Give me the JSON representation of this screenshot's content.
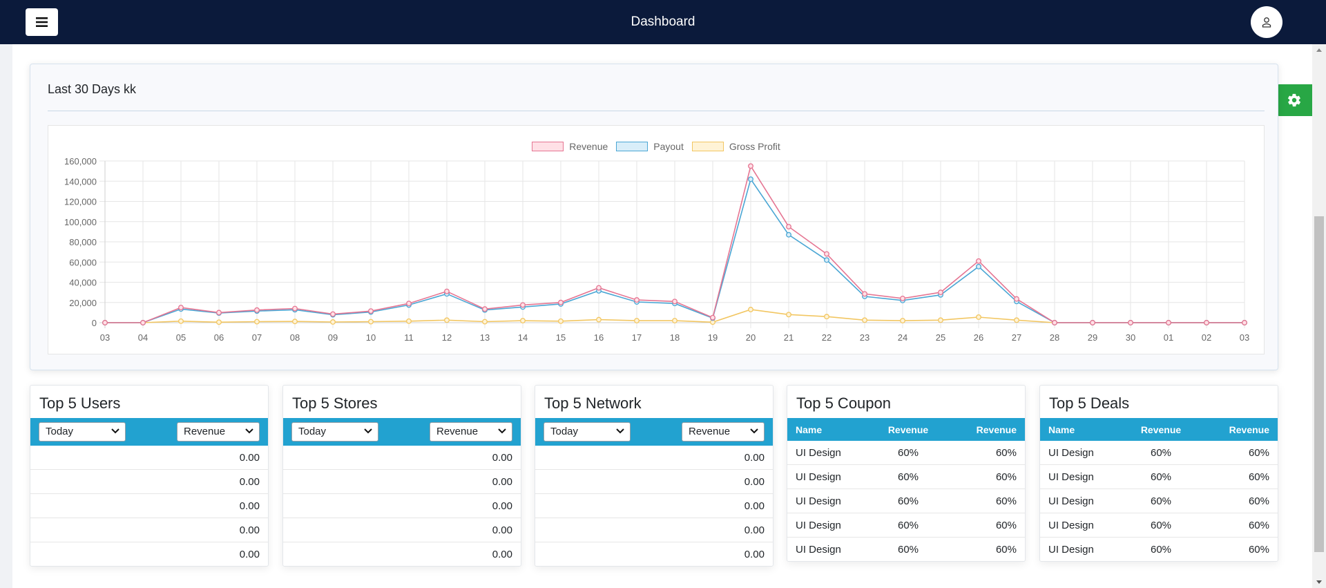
{
  "header": {
    "title": "Dashboard",
    "menu_icon": "hamburger-icon",
    "user_icon": "user-icon"
  },
  "settings_tab": {
    "icon": "gear-icon",
    "color": "#28a745"
  },
  "chart_card": {
    "title": "Last 30 Days kk"
  },
  "chart_data": {
    "type": "line",
    "categories": [
      "03",
      "04",
      "05",
      "06",
      "07",
      "08",
      "09",
      "10",
      "11",
      "12",
      "13",
      "14",
      "15",
      "16",
      "17",
      "18",
      "19",
      "20",
      "21",
      "22",
      "23",
      "24",
      "25",
      "26",
      "27",
      "28",
      "29",
      "30",
      "01",
      "02",
      "03"
    ],
    "y_ticks": [
      "0",
      "20,000",
      "40,000",
      "60,000",
      "80,000",
      "100,000",
      "120,000",
      "140,000",
      "160,000"
    ],
    "ylim": [
      0,
      160000
    ],
    "legend_position": "top-center",
    "grid": true,
    "series": [
      {
        "name": "Revenue",
        "color": "#e57592",
        "fill": "#ffe0e6",
        "values": [
          0,
          0,
          15000,
          10000,
          12500,
          14000,
          8500,
          11500,
          19000,
          31000,
          13500,
          17500,
          20000,
          34500,
          22500,
          21000,
          5000,
          155000,
          95000,
          68000,
          28500,
          24000,
          30000,
          61000,
          23500,
          0,
          0,
          0,
          0,
          0,
          0
        ]
      },
      {
        "name": "Payout",
        "color": "#4aa6d4",
        "fill": "#d9eef9",
        "values": [
          0,
          0,
          13500,
          9500,
          11500,
          12800,
          7800,
          10500,
          17500,
          28500,
          12500,
          15500,
          18500,
          31500,
          20500,
          19000,
          4500,
          142000,
          87000,
          62000,
          26000,
          22000,
          27500,
          55500,
          21000,
          0,
          0,
          0,
          0,
          0,
          0
        ]
      },
      {
        "name": "Gross Profit",
        "color": "#f2c661",
        "fill": "#fff3d6",
        "values": [
          0,
          0,
          1500,
          500,
          1000,
          1200,
          700,
          1000,
          1500,
          2500,
          1000,
          2000,
          1500,
          3000,
          2000,
          2000,
          500,
          13000,
          8000,
          6000,
          2500,
          2000,
          2500,
          5500,
          2500,
          0,
          0,
          0,
          0,
          0,
          0
        ]
      }
    ]
  },
  "cards": {
    "users": {
      "title": "Top 5 Users",
      "period": "Today",
      "metric": "Revenue",
      "values": [
        "0.00",
        "0.00",
        "0.00",
        "0.00",
        "0.00"
      ]
    },
    "stores": {
      "title": "Top 5 Stores",
      "period": "Today",
      "metric": "Revenue",
      "values": [
        "0.00",
        "0.00",
        "0.00",
        "0.00",
        "0.00"
      ]
    },
    "network": {
      "title": "Top 5 Network",
      "period": "Today",
      "metric": "Revenue",
      "values": [
        "0.00",
        "0.00",
        "0.00",
        "0.00",
        "0.00"
      ]
    },
    "coupon": {
      "title": "Top 5 Coupon",
      "headers": [
        "Name",
        "Revenue",
        "Revenue"
      ],
      "rows": [
        [
          "UI Design",
          "60%",
          "60%"
        ],
        [
          "UI Design",
          "60%",
          "60%"
        ],
        [
          "UI Design",
          "60%",
          "60%"
        ],
        [
          "UI Design",
          "60%",
          "60%"
        ],
        [
          "UI Design",
          "60%",
          "60%"
        ]
      ]
    },
    "deals": {
      "title": "Top 5 Deals",
      "headers": [
        "Name",
        "Revenue",
        "Revenue"
      ],
      "rows": [
        [
          "UI Design",
          "60%",
          "60%"
        ],
        [
          "UI Design",
          "60%",
          "60%"
        ],
        [
          "UI Design",
          "60%",
          "60%"
        ],
        [
          "UI Design",
          "60%",
          "60%"
        ],
        [
          "UI Design",
          "60%",
          "60%"
        ]
      ]
    }
  }
}
